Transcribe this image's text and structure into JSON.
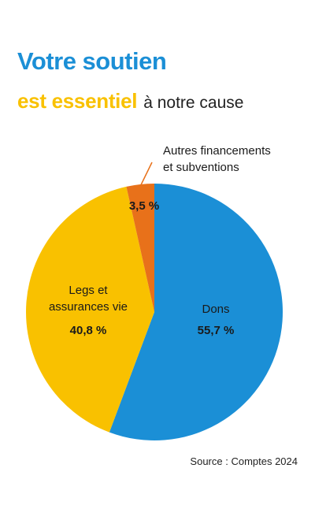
{
  "title": {
    "line1": "Votre soutien",
    "line2_strong": "est essentiel",
    "line2_light": "à notre cause"
  },
  "source": "Source : Comptes 2024",
  "colors": {
    "blue": "#1b8fd6",
    "yellow": "#f9c100",
    "orange": "#e8711a"
  },
  "chart_data": {
    "type": "pie",
    "slices": [
      {
        "label_lines": [
          "Dons"
        ],
        "value": 55.7,
        "value_label": "55,7 %",
        "color": "#1b8fd6"
      },
      {
        "label_lines": [
          "Legs et",
          "assurances vie"
        ],
        "value": 40.8,
        "value_label": "40,8 %",
        "color": "#f9c100"
      },
      {
        "label_lines": [
          "Autres financements",
          "et subventions"
        ],
        "value": 3.5,
        "value_label": "3,5 %",
        "color": "#e8711a"
      }
    ]
  }
}
